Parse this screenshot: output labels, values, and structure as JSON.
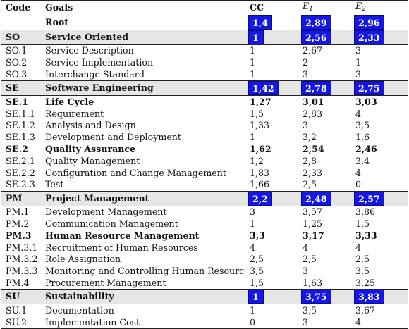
{
  "header": {
    "code": "Code",
    "goals": "Goals",
    "cc": "CC",
    "e1_base": "E",
    "e1_sub": "1",
    "e2_base": "E",
    "e2_sub": "2"
  },
  "accent_color": "#1616e6",
  "rows": [
    {
      "kind": "root",
      "code": "",
      "goal": "Root",
      "cc": "1,4",
      "e1": "2,89",
      "e2": "2,96"
    },
    {
      "kind": "group",
      "code": "SO",
      "goal": "Service Oriented",
      "cc": "1",
      "e1": "2,56",
      "e2": "2,33"
    },
    {
      "kind": "item",
      "code": "SO.1",
      "goal": "Service Description",
      "cc": "1",
      "e1": "2,67",
      "e2": "3"
    },
    {
      "kind": "item",
      "code": "SO.2",
      "goal": "Service Implementation",
      "cc": "1",
      "e1": "2",
      "e2": "1"
    },
    {
      "kind": "item",
      "code": "SO.3",
      "goal": "Interchange Standard",
      "cc": "1",
      "e1": "3",
      "e2": "3"
    },
    {
      "kind": "group",
      "code": "SE",
      "goal": "Software Engineering",
      "cc": "1,42",
      "e1": "2,78",
      "e2": "2,75"
    },
    {
      "kind": "sub",
      "code": "SE.1",
      "goal": "Life Cycle",
      "cc": "1,27",
      "e1": "3,01",
      "e2": "3,03"
    },
    {
      "kind": "item",
      "code": "SE.1.1",
      "goal": "Requirement",
      "cc": "1,5",
      "e1": "2,83",
      "e2": "4"
    },
    {
      "kind": "item",
      "code": "SE.1.2",
      "goal": "Analysis and Design",
      "cc": "1,33",
      "e1": "3",
      "e2": "3,5"
    },
    {
      "kind": "item",
      "code": "SE.1.3",
      "goal": "Development and Deployment",
      "cc": "1",
      "e1": "3,2",
      "e2": "1,6"
    },
    {
      "kind": "sub",
      "code": "SE.2",
      "goal": "Quality Assurance",
      "cc": "1,62",
      "e1": "2,54",
      "e2": "2,46"
    },
    {
      "kind": "item",
      "code": "SE.2.1",
      "goal": "Quality Management",
      "cc": "1,2",
      "e1": "2,8",
      "e2": "3,4"
    },
    {
      "kind": "item",
      "code": "SE.2.2",
      "goal": "Configuration and Change Management",
      "cc": "1,83",
      "e1": "2,33",
      "e2": "4"
    },
    {
      "kind": "item",
      "code": "SE.2.3",
      "goal": "Test",
      "cc": "1,66",
      "e1": "2,5",
      "e2": "0"
    },
    {
      "kind": "group",
      "code": "PM",
      "goal": "Project Management",
      "cc": "2,2",
      "e1": "2,48",
      "e2": "2,57"
    },
    {
      "kind": "item",
      "code": "PM.1",
      "goal": "Development Management",
      "cc": "3",
      "e1": "3,57",
      "e2": "3,86"
    },
    {
      "kind": "item",
      "code": "PM.2",
      "goal": "Communication Management",
      "cc": "1",
      "e1": "1,25",
      "e2": "1,5"
    },
    {
      "kind": "sub",
      "code": "PM.3",
      "goal": "Human Resource Management",
      "cc": "3,3",
      "e1": "3,17",
      "e2": "3,33"
    },
    {
      "kind": "item",
      "code": "PM.3.1",
      "goal": "Recruitment of Human Resources",
      "cc": "4",
      "e1": "4",
      "e2": "4"
    },
    {
      "kind": "item",
      "code": "PM.3.2",
      "goal": "Role Assignation",
      "cc": "2,5",
      "e1": "2,5",
      "e2": "2,5"
    },
    {
      "kind": "item",
      "code": "PM.3.3",
      "goal": "Monitoring and Controlling Human Resource",
      "cc": "3,5",
      "e1": "3",
      "e2": "3,5"
    },
    {
      "kind": "item",
      "code": "PM.4",
      "goal": "Procurement Management",
      "cc": "1,5",
      "e1": "1,63",
      "e2": "3,25"
    },
    {
      "kind": "group",
      "code": "SU",
      "goal": "Sustainability",
      "cc": "1",
      "e1": "3,75",
      "e2": "3,83"
    },
    {
      "kind": "item",
      "code": "SU.1",
      "goal": "Documentation",
      "cc": "1",
      "e1": "3,5",
      "e2": "3,67"
    },
    {
      "kind": "item",
      "code": "SU.2",
      "goal": "Implementation Cost",
      "cc": "0",
      "e1": "3",
      "e2": "4"
    }
  ]
}
